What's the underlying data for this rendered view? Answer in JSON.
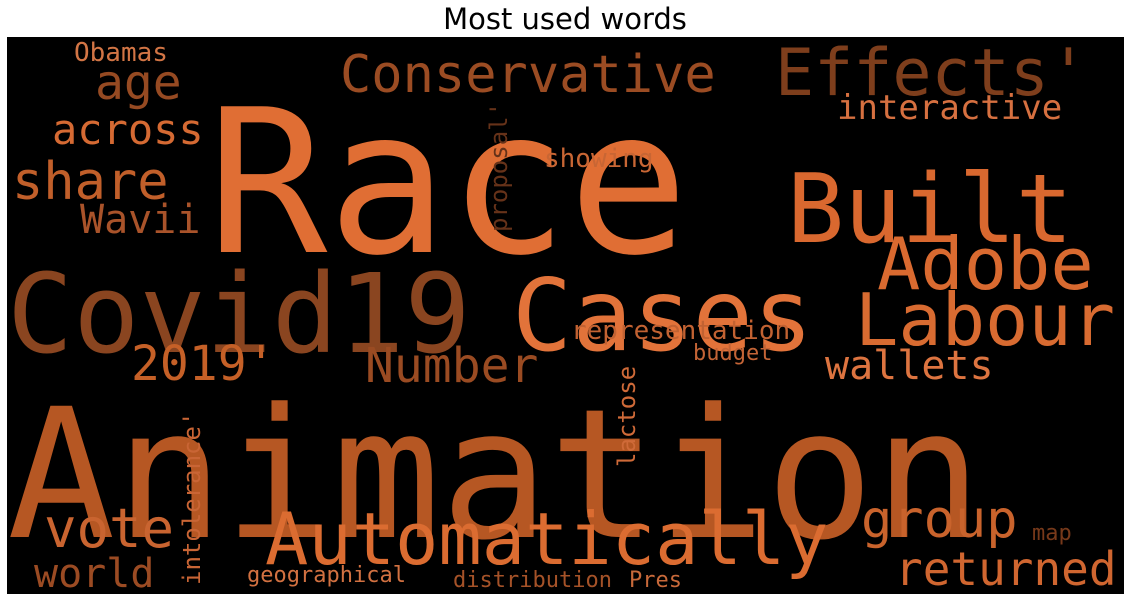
{
  "chart_data": {
    "type": "wordcloud",
    "title": "Most used words",
    "colormap": "copper",
    "background": "#000000",
    "words": [
      {
        "text": "Race",
        "color": "#e06e34"
      },
      {
        "text": "Animation",
        "color": "#b65723"
      },
      {
        "text": "Covid19",
        "color": "#8a4520"
      },
      {
        "text": "Cases",
        "color": "#e2733a"
      },
      {
        "text": "Built",
        "color": "#d9682f"
      },
      {
        "text": "Effects'",
        "color": "#7e3e1c"
      },
      {
        "text": "Conservative",
        "color": "#9b4c23"
      },
      {
        "text": "Adobe",
        "color": "#d96a30"
      },
      {
        "text": "Labour",
        "color": "#d86b31"
      },
      {
        "text": "Automatically",
        "color": "#db6c31"
      },
      {
        "text": "2019'",
        "color": "#c56027"
      },
      {
        "text": "Number",
        "color": "#9a4b22"
      },
      {
        "text": "age",
        "color": "#964a22"
      },
      {
        "text": "share",
        "color": "#c15f2a"
      },
      {
        "text": "across",
        "color": "#d56a33"
      },
      {
        "text": "Wavii",
        "color": "#a9532a"
      },
      {
        "text": "vote",
        "color": "#c96430"
      },
      {
        "text": "world",
        "color": "#9b4b23"
      },
      {
        "text": "group",
        "color": "#c9632c"
      },
      {
        "text": "returned",
        "color": "#d06630"
      },
      {
        "text": "wallets",
        "color": "#dd7440"
      },
      {
        "text": "interactive",
        "color": "#d67040"
      },
      {
        "text": "showing",
        "color": "#c86634"
      },
      {
        "text": "representation",
        "color": "#c26232"
      },
      {
        "text": "budget",
        "color": "#c46436"
      },
      {
        "text": "Obamas",
        "color": "#d27545"
      },
      {
        "text": "proposal'",
        "color": "#663219"
      },
      {
        "text": "lactose",
        "color": "#cf6a38"
      },
      {
        "text": "intolerance'",
        "color": "#c96535"
      },
      {
        "text": "geographical",
        "color": "#d27141"
      },
      {
        "text": "distribution",
        "color": "#a55228"
      },
      {
        "text": "Pres",
        "color": "#c8693a"
      },
      {
        "text": "map",
        "color": "#77391a"
      }
    ]
  }
}
